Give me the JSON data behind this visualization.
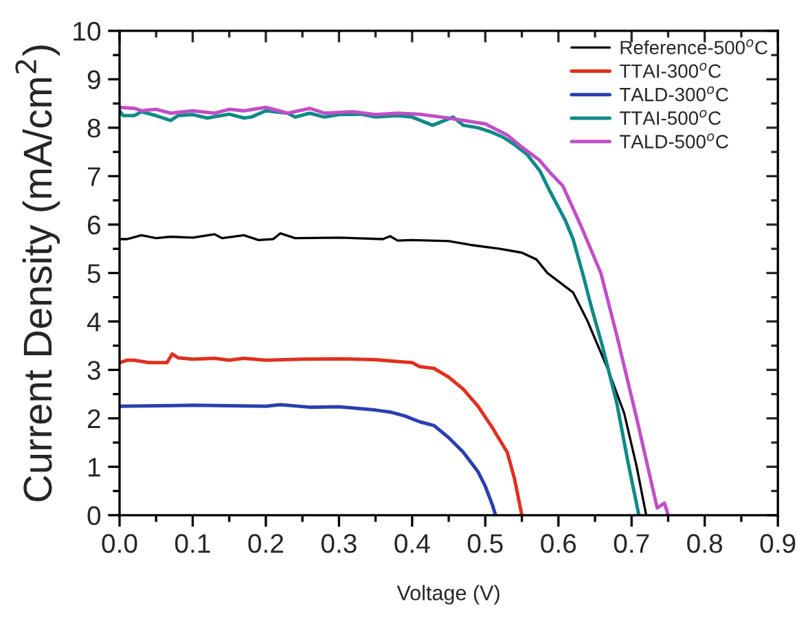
{
  "chart_data": {
    "type": "line",
    "xlabel": "Voltage (V)",
    "ylabel": "Current Density (mA/cm$^{2}$)",
    "xlim": [
      0,
      0.9
    ],
    "ylim": [
      0,
      10
    ],
    "xticks": [
      {
        "value": 0,
        "label": "0.0"
      },
      0.1,
      0.2,
      0.3,
      0.4,
      0.5,
      0.6,
      0.7,
      0.8,
      0.9
    ],
    "yticks": [
      0,
      1,
      2,
      3,
      4,
      5,
      6,
      7,
      8,
      9,
      10
    ],
    "legend": "top right",
    "grid": false,
    "marker": "none",
    "line_style": "solid",
    "series": [
      {
        "name": "Reference-500$^{o}$C",
        "color": "#000000",
        "x": [
          0,
          0.01,
          0.03,
          0.05,
          0.07,
          0.1,
          0.13,
          0.14,
          0.17,
          0.19,
          0.21,
          0.22,
          0.24,
          0.3,
          0.36,
          0.37,
          0.38,
          0.4,
          0.45,
          0.48,
          0.52,
          0.55,
          0.57,
          0.585,
          0.62,
          0.64,
          0.668,
          0.69,
          0.707,
          0.72
        ],
        "values": [
          5.7,
          5.7,
          5.78,
          5.72,
          5.75,
          5.73,
          5.8,
          5.72,
          5.78,
          5.68,
          5.7,
          5.82,
          5.72,
          5.73,
          5.7,
          5.76,
          5.67,
          5.68,
          5.66,
          5.58,
          5.5,
          5.42,
          5.28,
          5.0,
          4.6,
          4.0,
          3.0,
          2.1,
          1.0,
          0
        ]
      },
      {
        "name": "TTAI-300$^{o}$C",
        "color": "#e0301e",
        "x": [
          0,
          0.01,
          0.02,
          0.04,
          0.065,
          0.072,
          0.08,
          0.1,
          0.13,
          0.15,
          0.17,
          0.2,
          0.25,
          0.3,
          0.35,
          0.39,
          0.4,
          0.41,
          0.43,
          0.45,
          0.47,
          0.49,
          0.51,
          0.53,
          0.54,
          0.55
        ],
        "values": [
          3.15,
          3.2,
          3.2,
          3.15,
          3.15,
          3.33,
          3.25,
          3.22,
          3.24,
          3.2,
          3.24,
          3.2,
          3.22,
          3.23,
          3.21,
          3.16,
          3.15,
          3.07,
          3.03,
          2.85,
          2.6,
          2.25,
          1.8,
          1.3,
          0.75,
          0
        ]
      },
      {
        "name": "TALD-300$^{o}$C",
        "color": "#2b3fae",
        "x": [
          0,
          0.1,
          0.2,
          0.22,
          0.26,
          0.3,
          0.35,
          0.37,
          0.39,
          0.41,
          0.43,
          0.45,
          0.47,
          0.49,
          0.5,
          0.51,
          0.514
        ],
        "values": [
          2.25,
          2.27,
          2.25,
          2.28,
          2.23,
          2.24,
          2.17,
          2.13,
          2.05,
          1.93,
          1.85,
          1.6,
          1.3,
          0.9,
          0.6,
          0.2,
          0
        ]
      },
      {
        "name": "TTAI-500$^{o}$C",
        "color": "#0e8a87",
        "x": [
          0,
          0.005,
          0.02,
          0.03,
          0.05,
          0.07,
          0.08,
          0.1,
          0.12,
          0.15,
          0.17,
          0.18,
          0.2,
          0.23,
          0.24,
          0.26,
          0.28,
          0.3,
          0.33,
          0.35,
          0.38,
          0.4,
          0.428,
          0.456,
          0.47,
          0.49,
          0.51,
          0.525,
          0.54,
          0.557,
          0.575,
          0.588,
          0.609,
          0.62,
          0.633,
          0.645,
          0.66,
          0.68,
          0.695,
          0.71
        ],
        "values": [
          8.35,
          8.25,
          8.25,
          8.33,
          8.25,
          8.15,
          8.25,
          8.27,
          8.2,
          8.28,
          8.2,
          8.22,
          8.35,
          8.3,
          8.22,
          8.3,
          8.22,
          8.27,
          8.28,
          8.22,
          8.25,
          8.22,
          8.05,
          8.22,
          8.05,
          8.0,
          7.9,
          7.8,
          7.65,
          7.45,
          7.1,
          6.7,
          6.1,
          5.7,
          5.0,
          4.3,
          3.5,
          2.3,
          1.1,
          0
        ]
      },
      {
        "name": "TALD-500$^{o}$C",
        "color": "#c04fc8",
        "x": [
          0,
          0.02,
          0.03,
          0.05,
          0.07,
          0.1,
          0.13,
          0.15,
          0.17,
          0.2,
          0.23,
          0.26,
          0.28,
          0.32,
          0.35,
          0.38,
          0.41,
          0.44,
          0.47,
          0.5,
          0.53,
          0.55,
          0.574,
          0.59,
          0.606,
          0.63,
          0.658,
          0.68,
          0.707,
          0.735,
          0.745,
          0.75
        ],
        "values": [
          8.42,
          8.4,
          8.35,
          8.38,
          8.3,
          8.35,
          8.3,
          8.38,
          8.35,
          8.42,
          8.3,
          8.4,
          8.3,
          8.33,
          8.27,
          8.3,
          8.28,
          8.22,
          8.15,
          8.08,
          7.85,
          7.6,
          7.33,
          7.05,
          6.8,
          6.0,
          5.0,
          3.7,
          2.0,
          0.15,
          0.25,
          0
        ]
      }
    ]
  }
}
